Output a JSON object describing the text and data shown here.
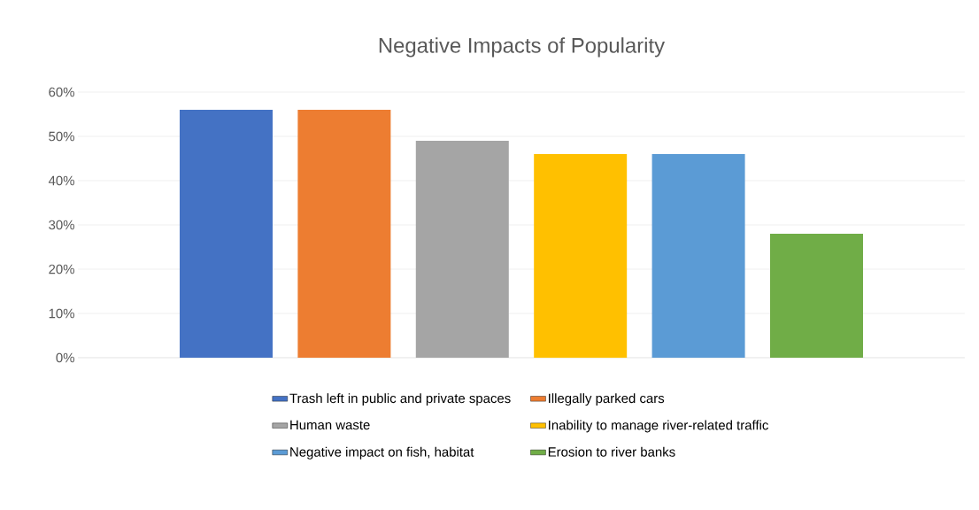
{
  "chart_data": {
    "type": "bar",
    "title": "Negative Impacts of Popularity",
    "categories": [
      null
    ],
    "series": [
      {
        "name": "Trash left in public and private spaces",
        "color": "#4472c4",
        "values": [
          56
        ]
      },
      {
        "name": "Illegally parked cars",
        "color": "#ed7d31",
        "values": [
          56
        ]
      },
      {
        "name": "Human waste",
        "color": "#a5a5a5",
        "values": [
          49
        ]
      },
      {
        "name": "Inability to manage river-related traffic",
        "color": "#ffc000",
        "values": [
          46
        ]
      },
      {
        "name": "Negative impact on fish,  habitat",
        "color": "#5b9bd5",
        "values": [
          46
        ]
      },
      {
        "name": "Erosion to river banks",
        "color": "#70ad47",
        "values": [
          28
        ]
      }
    ],
    "ylim": [
      0,
      60
    ],
    "yticks": [
      {
        "value": 0,
        "label": "0%"
      },
      {
        "value": 10,
        "label": "10%"
      },
      {
        "value": 20,
        "label": "20%"
      },
      {
        "value": 30,
        "label": "30%"
      },
      {
        "value": 40,
        "label": "40%"
      },
      {
        "value": 50,
        "label": "50%"
      },
      {
        "value": 60,
        "label": "60%"
      }
    ],
    "grid": "y",
    "legend": "bottom"
  }
}
